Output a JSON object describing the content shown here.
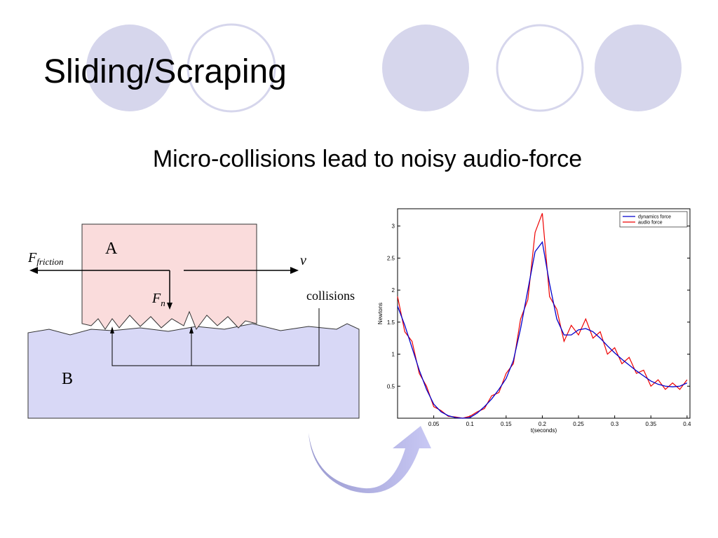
{
  "title": "Sliding/Scraping",
  "subtitle": "Micro-collisions lead to noisy audio-force",
  "diagram": {
    "block_a": "A",
    "block_b": "B",
    "friction": {
      "main": "F",
      "sub": "friction"
    },
    "normal": {
      "main": "F",
      "sub": "n"
    },
    "velocity": "v",
    "collisions": "collisions"
  },
  "chart_data": {
    "type": "line",
    "xlabel": "t(seconds)",
    "ylabel": "Newtons",
    "x": [
      0,
      0.01,
      0.02,
      0.03,
      0.04,
      0.05,
      0.06,
      0.07,
      0.08,
      0.09,
      0.1,
      0.11,
      0.12,
      0.13,
      0.14,
      0.15,
      0.16,
      0.17,
      0.18,
      0.19,
      0.2,
      0.21,
      0.22,
      0.23,
      0.24,
      0.25,
      0.26,
      0.27,
      0.28,
      0.29,
      0.3,
      0.31,
      0.32,
      0.33,
      0.34,
      0.35,
      0.36,
      0.37,
      0.38,
      0.39,
      0.4
    ],
    "series": [
      {
        "name": "dynamics force",
        "color": "#0000cc",
        "values": [
          1.75,
          1.45,
          1.1,
          0.75,
          0.45,
          0.22,
          0.1,
          0.04,
          0.01,
          0,
          0.01,
          0.08,
          0.18,
          0.3,
          0.45,
          0.62,
          0.9,
          1.4,
          2.0,
          2.6,
          2.75,
          2.1,
          1.55,
          1.3,
          1.3,
          1.38,
          1.4,
          1.35,
          1.25,
          1.13,
          1.02,
          0.92,
          0.83,
          0.74,
          0.66,
          0.58,
          0.53,
          0.5,
          0.49,
          0.5,
          0.55
        ]
      },
      {
        "name": "audio force",
        "color": "#ee0000",
        "values": [
          1.9,
          1.35,
          1.2,
          0.7,
          0.5,
          0.18,
          0.12,
          0.03,
          0.02,
          0,
          0.03,
          0.1,
          0.15,
          0.35,
          0.4,
          0.7,
          0.85,
          1.55,
          1.85,
          2.9,
          3.2,
          1.9,
          1.7,
          1.2,
          1.45,
          1.3,
          1.55,
          1.25,
          1.35,
          1.0,
          1.1,
          0.85,
          0.95,
          0.7,
          0.75,
          0.5,
          0.6,
          0.45,
          0.55,
          0.45,
          0.6
        ]
      }
    ],
    "xlim": [
      0,
      0.404
    ],
    "ylim": [
      0,
      3.27
    ],
    "xticks": [
      0.05,
      0.1,
      0.15,
      0.2,
      0.25,
      0.3,
      0.35,
      0.4
    ],
    "yticks": [
      0.5,
      1,
      1.5,
      2,
      2.5,
      3
    ],
    "legend": "upper right"
  }
}
